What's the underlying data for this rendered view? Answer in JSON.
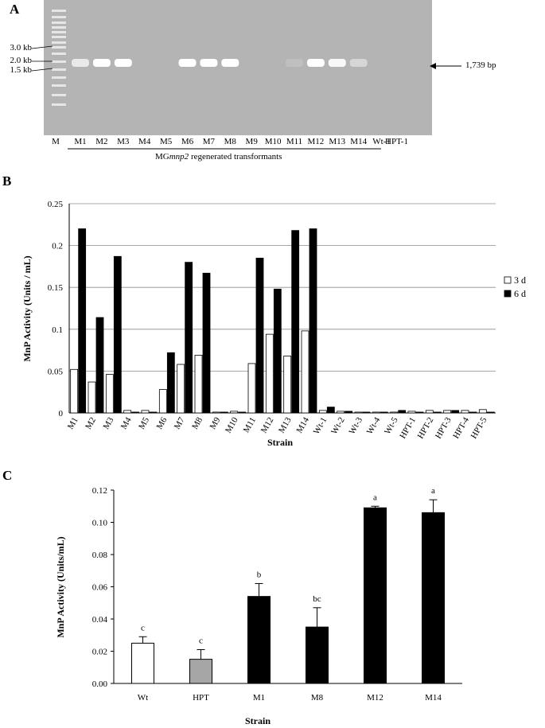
{
  "panels": {
    "a": "A",
    "b": "B",
    "c": "C"
  },
  "gel": {
    "ladder_marks": [
      "3.0 kb",
      "2.0 kb",
      "1.5 kb"
    ],
    "lanes": [
      "M",
      "M1",
      "M2",
      "M3",
      "M4",
      "M5",
      "M6",
      "M7",
      "M8",
      "M9",
      "M10",
      "M11",
      "M12",
      "M13",
      "M14",
      "Wt-1",
      "HPT-1"
    ],
    "band_intensity": [
      0,
      0.7,
      1,
      1,
      0,
      0,
      1,
      1,
      1,
      0,
      0,
      0.15,
      1,
      0.9,
      0.45,
      0,
      0
    ],
    "group_label_prefix": "MG",
    "group_label_italic": "mnp2",
    "group_label_suffix": " regenerated transformants",
    "band_size_label": "1,739 bp"
  },
  "chart_data": [
    {
      "type": "bar",
      "title": "",
      "xlabel": "Strain",
      "ylabel": "MnP Activity (Units / mL)",
      "ylim": [
        0,
        0.25
      ],
      "yticks": [
        "0",
        "0.05",
        "0.1",
        "0.15",
        "0.2",
        "0.25"
      ],
      "grid": true,
      "legend_position": "right",
      "categories": [
        "M1",
        "M2",
        "M3",
        "M4",
        "M5",
        "M6",
        "M7",
        "M8",
        "M9",
        "M10",
        "M11",
        "M12",
        "M13",
        "M14",
        "Wt-1",
        "Wt-2",
        "Wt-3",
        "Wt-4",
        "Wt-5",
        "HPT-1",
        "HPT-2",
        "HPT-3",
        "HPT-4",
        "HPT-5"
      ],
      "series": [
        {
          "name": "3 d",
          "color": "#ffffff",
          "values": [
            0.052,
            0.037,
            0.046,
            0.003,
            0.003,
            0.028,
            0.058,
            0.069,
            0.001,
            0.002,
            0.059,
            0.094,
            0.068,
            0.098,
            0.003,
            0.002,
            0.001,
            0.001,
            0.001,
            0.002,
            0.003,
            0.003,
            0.003,
            0.004
          ]
        },
        {
          "name": "6 d",
          "color": "#000000",
          "values": [
            0.22,
            0.114,
            0.187,
            0.001,
            0.001,
            0.072,
            0.18,
            0.167,
            0.001,
            0.001,
            0.185,
            0.148,
            0.218,
            0.22,
            0.007,
            0.002,
            0.001,
            0.001,
            0.003,
            0.001,
            0.001,
            0.003,
            0.001,
            0.001
          ]
        }
      ]
    },
    {
      "type": "bar",
      "title": "",
      "xlabel": "Strain",
      "ylabel": "MnP Activity (Units/mL)",
      "ylim": [
        0,
        0.12
      ],
      "yticks": [
        "0.00",
        "0.02",
        "0.04",
        "0.06",
        "0.08",
        "0.10",
        "0.12"
      ],
      "grid": false,
      "categories": [
        "Wt",
        "HPT",
        "M1",
        "M8",
        "M12",
        "M14"
      ],
      "values": [
        0.025,
        0.015,
        0.054,
        0.035,
        0.109,
        0.106
      ],
      "errors": [
        0.004,
        0.006,
        0.008,
        0.012,
        0.001,
        0.008
      ],
      "colors": [
        "#ffffff",
        "#a6a6a6",
        "#000000",
        "#000000",
        "#000000",
        "#000000"
      ],
      "significance_letters": [
        "c",
        "c",
        "b",
        "bc",
        "a",
        "a"
      ]
    }
  ]
}
